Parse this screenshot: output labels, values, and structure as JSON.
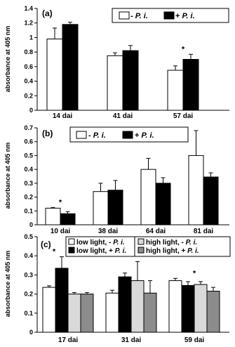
{
  "chart_data": [
    {
      "type": "bar",
      "panel_label": "(a)",
      "ylabel": "absorbance at 405 nm",
      "ylim": [
        0,
        1.4
      ],
      "yticks": [
        "0",
        "0.2",
        "0.4",
        "0.6",
        "0.8",
        "1",
        "1.2",
        "1.4"
      ],
      "categories": [
        "14 dai",
        "41 dai",
        "57 dai"
      ],
      "legend": {
        "placement": "top-right",
        "entries": [
          {
            "prefix": "- ",
            "italic": "P. i."
          },
          {
            "prefix": "+ ",
            "italic": "P. i."
          }
        ]
      },
      "series": [
        {
          "values": [
            0.98,
            0.75,
            0.55
          ],
          "errors": [
            0.15,
            0.04,
            0.06
          ],
          "color": "#ffffff"
        },
        {
          "values": [
            1.18,
            0.82,
            0.7
          ],
          "errors": [
            0.03,
            0.07,
            0.07
          ],
          "color": "#000000"
        }
      ],
      "annotations": [
        {
          "text": "*",
          "category_index": 2
        }
      ]
    },
    {
      "type": "bar",
      "panel_label": "(b)",
      "ylabel": "absorbance at 405 nm",
      "ylim": [
        0,
        0.7
      ],
      "yticks": [
        "0",
        "0.1",
        "0.2",
        "0.3",
        "0.4",
        "0.5",
        "0.6",
        "0.7"
      ],
      "categories": [
        "10 dai",
        "38 dai",
        "64 dai",
        "81 dai"
      ],
      "legend": {
        "placement": "top-left",
        "entries": [
          {
            "prefix": "- ",
            "italic": "P. i."
          },
          {
            "prefix": "+ ",
            "italic": "P. i."
          }
        ]
      },
      "series": [
        {
          "values": [
            0.12,
            0.24,
            0.4,
            0.5
          ],
          "errors": [
            0.005,
            0.06,
            0.08,
            0.18
          ],
          "color": "#ffffff"
        },
        {
          "values": [
            0.08,
            0.25,
            0.3,
            0.345
          ],
          "errors": [
            0.015,
            0.07,
            0.04,
            0.03
          ],
          "color": "#000000"
        }
      ],
      "annotations": [
        {
          "text": "*",
          "category_index": 0
        }
      ]
    },
    {
      "type": "bar",
      "panel_label": "(c)",
      "ylabel": "absorbance at 405 nm",
      "ylim": [
        0,
        0.5
      ],
      "yticks": [
        "0",
        "0.1",
        "0.2",
        "0.3",
        "0.4",
        "0.5"
      ],
      "categories": [
        "17 dai",
        "31 dai",
        "59 dai"
      ],
      "legend": {
        "placement": "top",
        "entries": [
          {
            "prefix": "low light, - ",
            "italic": "P. i."
          },
          {
            "prefix": "low light, + ",
            "italic": "P. i."
          },
          {
            "prefix": "high light, - ",
            "italic": "P. i."
          },
          {
            "prefix": "high light, + ",
            "italic": "P. i."
          }
        ]
      },
      "series": [
        {
          "values": [
            0.235,
            0.205,
            0.27
          ],
          "errors": [
            0.008,
            0.015,
            0.012
          ],
          "color": "#ffffff"
        },
        {
          "values": [
            0.335,
            0.29,
            0.245
          ],
          "errors": [
            0.06,
            0.02,
            0.02
          ],
          "color": "#000000"
        },
        {
          "values": [
            0.2,
            0.27,
            0.25
          ],
          "errors": [
            0.008,
            0.1,
            0.015
          ],
          "color": "#d9d9d9"
        },
        {
          "values": [
            0.2,
            0.205,
            0.215
          ],
          "errors": [
            0.008,
            0.065,
            0.02
          ],
          "color": "#8c8c8c"
        }
      ],
      "annotations": [
        {
          "text": "*",
          "category_index": 0
        },
        {
          "text": "*",
          "category_index": 1
        },
        {
          "text": "*",
          "category_index": 2
        }
      ]
    }
  ]
}
